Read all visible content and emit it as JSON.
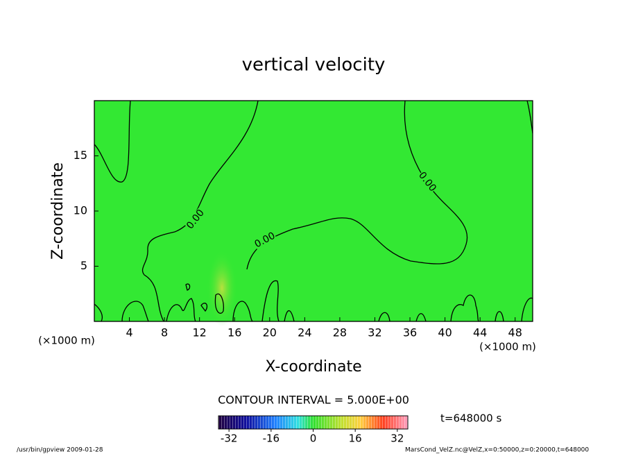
{
  "chart_data": {
    "type": "contour",
    "title": "vertical velocity",
    "x_label": "X-coordinate",
    "y_label": "Z-coordinate",
    "x_unit": "(×1000 m)",
    "y_unit": "(×1000 m)",
    "xlim": [
      0,
      50
    ],
    "ylim": [
      0,
      20
    ],
    "xticks": [
      4,
      8,
      12,
      16,
      20,
      24,
      28,
      32,
      36,
      40,
      44,
      48
    ],
    "yticks": [
      5,
      10,
      15
    ],
    "grid": false,
    "fill_color": "#33e833",
    "contour_levels": [
      {
        "value": 0,
        "label": "0.00"
      }
    ],
    "contour_interval_label": "CONTOUR INTERVAL = 5.000E+00",
    "colorbar": {
      "lim": [
        -36,
        36
      ],
      "ticks": [
        -32,
        -16,
        0,
        16,
        32
      ]
    },
    "time_label": "t=648000 s",
    "footer_left": "/usr/bin/gpview  2009-01-28",
    "footer_right": "MarsCond_VelZ.nc@VelZ,x=0:50000,z=0:20000,t=648000"
  }
}
